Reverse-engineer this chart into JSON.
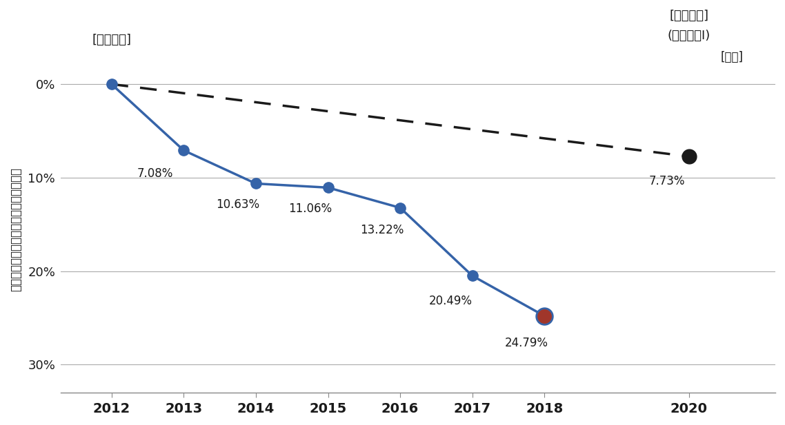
{
  "years_main": [
    2012,
    2013,
    2014,
    2015,
    2016,
    2017,
    2018
  ],
  "values_main": [
    0.0,
    7.08,
    10.63,
    11.06,
    13.22,
    20.49,
    24.79
  ],
  "labels_main": [
    "",
    "7.08%",
    "10.63%",
    "11.06%",
    "13.22%",
    "20.49%",
    "24.79%"
  ],
  "target_years": [
    2012,
    2020
  ],
  "target_values": [
    0.0,
    7.73
  ],
  "target_label": "7.73%",
  "x_ticks": [
    2012,
    2013,
    2014,
    2015,
    2016,
    2017,
    2018,
    2020
  ],
  "y_ticks": [
    0,
    10,
    20,
    30
  ],
  "y_tick_labels": [
    "0%",
    "10%",
    "20%",
    "30%"
  ],
  "ylim_top": -2,
  "ylim_bottom": 33,
  "xlim_left": 2011.3,
  "xlim_right": 2021.2,
  "line_color": "#3563A8",
  "target_line_color": "#1a1a1a",
  "marker_color_main": "#3563A8",
  "marker_color_special": "#A0362A",
  "marker_color_target": "#1a1a1a",
  "ylabel": "エネルギー原単位改善率（基準年度比）",
  "title_base": "[基準年度]",
  "title_target_line1": "[目標年度]",
  "title_target_line2": "(フェーズⅠ)",
  "year_label_2020": "2020",
  "year_suffix": "[年度]",
  "background_color": "#ffffff"
}
